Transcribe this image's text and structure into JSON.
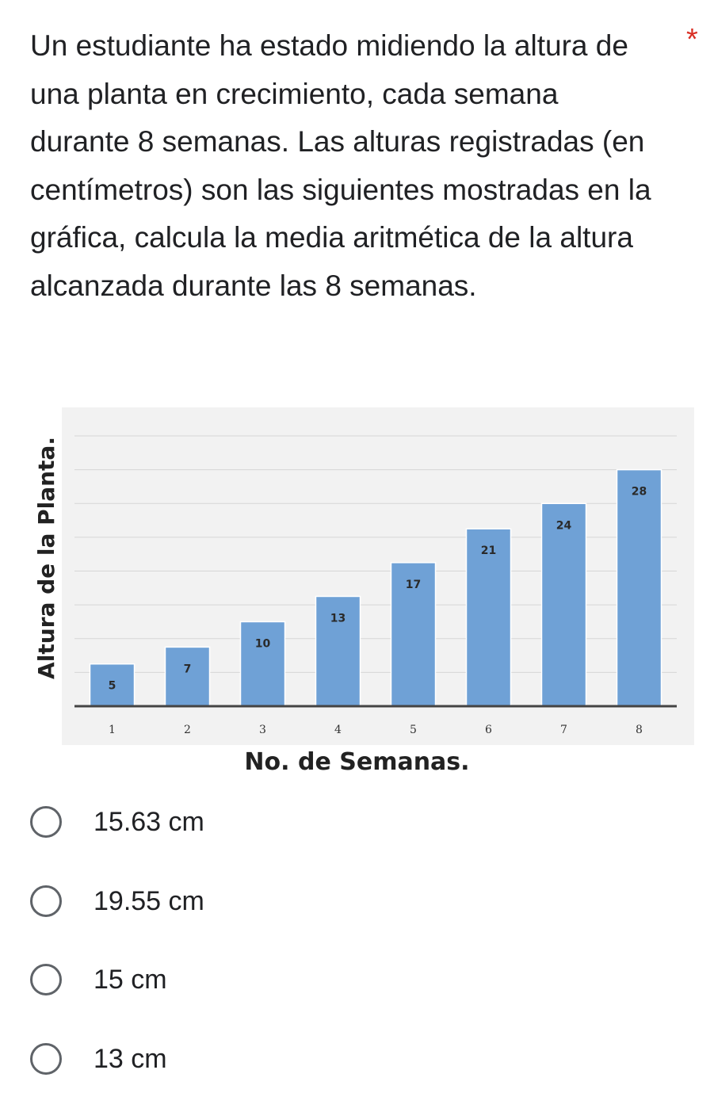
{
  "question": {
    "text": "Un estudiante ha estado midiendo la altura de una planta en crecimiento, cada semana durante 8 semanas. Las alturas registradas (en centímetros) son las siguientes mostradas en la gráfica, calcula la media aritmética de la altura alcanzada durante las 8 semanas.",
    "required_marker": "*"
  },
  "chart_data": {
    "type": "bar",
    "categories": [
      "1",
      "2",
      "3",
      "4",
      "5",
      "6",
      "7",
      "8"
    ],
    "values": [
      5,
      7,
      10,
      13,
      17,
      21,
      24,
      28
    ],
    "xlabel": "No. de Semanas.",
    "ylabel": "Altura de la Planta.",
    "ylim": [
      0,
      32
    ],
    "grid": true,
    "bar_color": "#6fa1d6",
    "plot_background": "#f2f2f2"
  },
  "options": [
    {
      "label": "15.63 cm"
    },
    {
      "label": "19.55 cm"
    },
    {
      "label": "15 cm"
    },
    {
      "label": "13 cm"
    }
  ]
}
